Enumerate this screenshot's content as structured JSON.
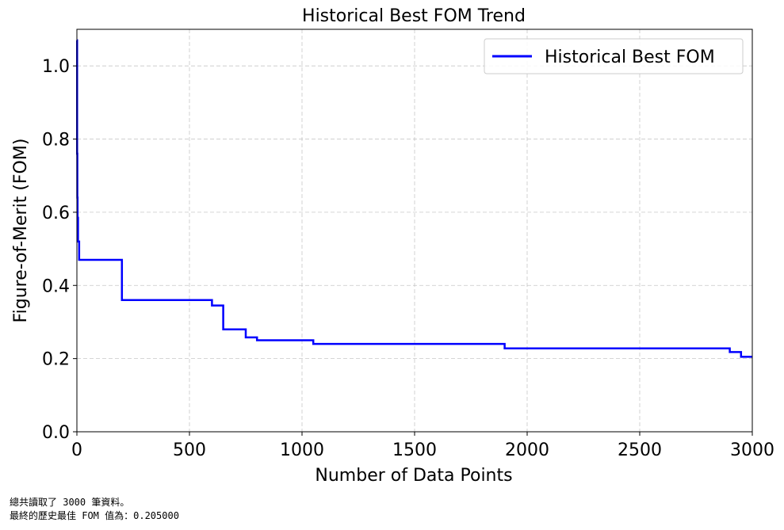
{
  "chart_data": {
    "type": "line",
    "title": "Historical Best FOM Trend",
    "xlabel": "Number of Data Points",
    "ylabel": "Figure-of-Merit (FOM)",
    "xlim": [
      0,
      3000
    ],
    "ylim": [
      0.0,
      1.1
    ],
    "x_ticks": [
      0,
      500,
      1000,
      1500,
      2000,
      2500,
      3000
    ],
    "x_tick_labels": [
      "0",
      "500",
      "1000",
      "1500",
      "2000",
      "2500",
      "3000"
    ],
    "y_ticks": [
      0.0,
      0.2,
      0.4,
      0.6,
      0.8,
      1.0
    ],
    "y_tick_labels": [
      "0.0",
      "0.2",
      "0.4",
      "0.6",
      "0.8",
      "1.0"
    ],
    "grid": true,
    "legend_position": "top-right",
    "series": [
      {
        "name": "Historical Best FOM",
        "color": "#0000ff",
        "step": "post",
        "x": [
          0,
          1,
          2,
          3,
          5,
          10,
          200,
          600,
          650,
          750,
          800,
          1050,
          1900,
          2900,
          2950,
          3000
        ],
        "y": [
          1.07,
          0.76,
          0.64,
          0.585,
          0.52,
          0.47,
          0.36,
          0.345,
          0.28,
          0.258,
          0.25,
          0.24,
          0.228,
          0.218,
          0.205,
          0.205
        ]
      }
    ]
  },
  "console": {
    "line1": "總共讀取了 3000 筆資料。",
    "line2": "最終的歷史最佳 FOM 值為：0.205000"
  }
}
